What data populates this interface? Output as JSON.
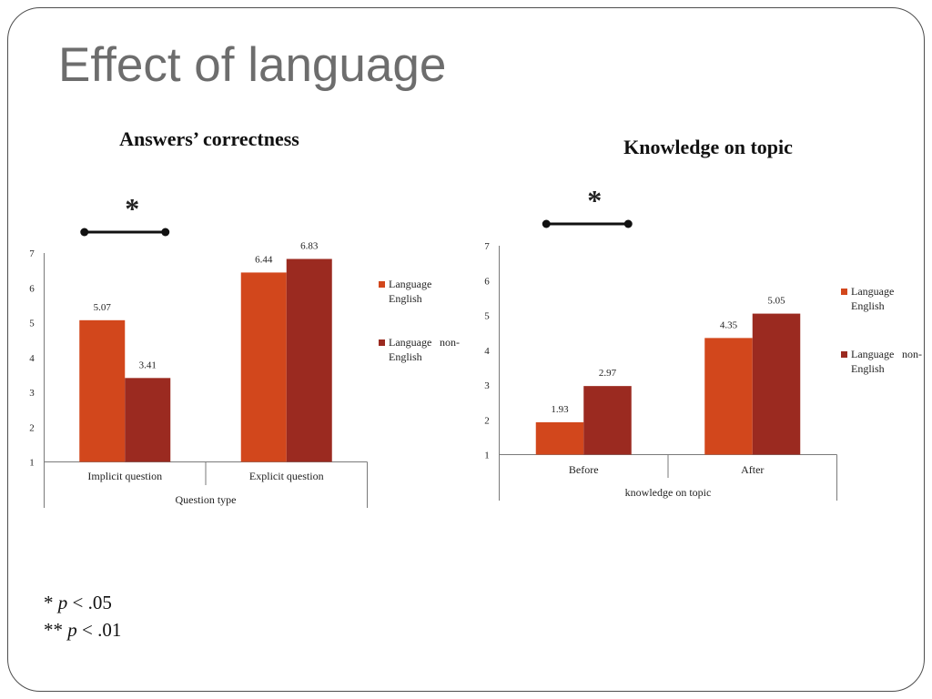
{
  "slide": {
    "title": "Effect of language"
  },
  "colors": {
    "title": "#6D6D6D",
    "language_english": "#D2471C",
    "language_non_english": "#9B2A20",
    "axis": "#7A7A7A",
    "significance": "#111111"
  },
  "chart_data": [
    {
      "type": "bar",
      "title": "Answers’ correctness",
      "xlabel": "Question type",
      "categories": [
        "Implicit question",
        "Explicit question"
      ],
      "series": [
        {
          "name": "Language English",
          "values": [
            5.07,
            6.44
          ]
        },
        {
          "name": "Language non-English",
          "values": [
            3.41,
            6.83
          ]
        }
      ],
      "ylim": [
        1,
        7
      ],
      "yticks": [
        1,
        2,
        3,
        4,
        5,
        6,
        7
      ],
      "data_labels": true,
      "grid": false,
      "legend": "right",
      "significance": {
        "marker": "*",
        "category_index": 0
      }
    },
    {
      "type": "bar",
      "title": "Knowledge on topic",
      "xlabel": "knowledge on topic",
      "categories": [
        "Before",
        "After"
      ],
      "series": [
        {
          "name": "Language English",
          "values": [
            1.93,
            4.35
          ]
        },
        {
          "name": "Language non-English",
          "values": [
            2.97,
            5.05
          ]
        }
      ],
      "ylim": [
        1,
        7
      ],
      "yticks": [
        1,
        2,
        3,
        4,
        5,
        6,
        7
      ],
      "data_labels": true,
      "grid": false,
      "legend": "right",
      "significance": {
        "marker": "*",
        "category_index": 0
      }
    }
  ],
  "footnotes": [
    {
      "marker": "*",
      "symbol": "p",
      "threshold": "< .05"
    },
    {
      "marker": "**",
      "symbol": "p",
      "threshold": "< .01"
    }
  ]
}
